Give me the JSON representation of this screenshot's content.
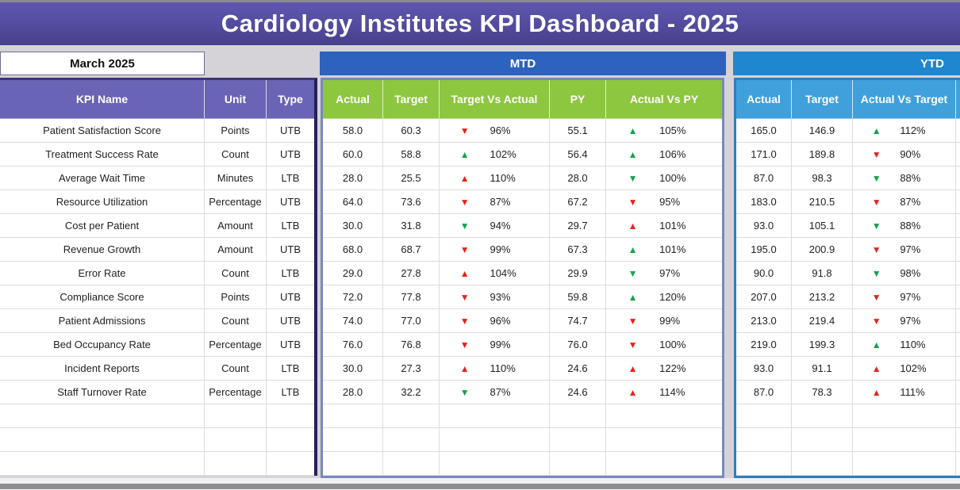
{
  "title": "Cardiology Institutes KPI Dashboard - 2025",
  "period": {
    "value": "March 2025"
  },
  "sections": {
    "kpi": {
      "headers": [
        "KPI Name",
        "Unit",
        "Type"
      ]
    },
    "mtd": {
      "label": "MTD",
      "headers": [
        "Actual",
        "Target",
        "Target Vs Actual",
        "PY",
        "Actual Vs PY"
      ]
    },
    "ytd": {
      "label": "YTD",
      "headers": [
        "Actual",
        "Target",
        "Actual Vs Target"
      ]
    }
  },
  "colors": {
    "title_purple": "#554DA1",
    "kpi_header_purple": "#6A64B6",
    "mtd_bar_blue": "#2D62BE",
    "ytd_bar_blue": "#1F86D0",
    "mtd_header_green": "#8DC63F",
    "ytd_header_blue": "#3FA0DC",
    "positive_green": "#17A14C",
    "negative_red": "#E0261C"
  },
  "empty_row_count": 3,
  "rows": [
    {
      "name": "Patient Satisfaction Score",
      "unit": "Points",
      "type": "UTB",
      "mtd": {
        "actual": "58.0",
        "target": "60.3",
        "target_vs_actual": {
          "dir": "down",
          "color": "red",
          "value": "96%"
        },
        "py": "55.1",
        "actual_vs_py": {
          "dir": "up",
          "color": "green",
          "value": "105%"
        }
      },
      "ytd": {
        "actual": "165.0",
        "target": "146.9",
        "actual_vs_target": {
          "dir": "up",
          "color": "green",
          "value": "112%"
        }
      }
    },
    {
      "name": "Treatment Success Rate",
      "unit": "Count",
      "type": "UTB",
      "mtd": {
        "actual": "60.0",
        "target": "58.8",
        "target_vs_actual": {
          "dir": "up",
          "color": "green",
          "value": "102%"
        },
        "py": "56.4",
        "actual_vs_py": {
          "dir": "up",
          "color": "green",
          "value": "106%"
        }
      },
      "ytd": {
        "actual": "171.0",
        "target": "189.8",
        "actual_vs_target": {
          "dir": "down",
          "color": "red",
          "value": "90%"
        }
      }
    },
    {
      "name": "Average Wait Time",
      "unit": "Minutes",
      "type": "LTB",
      "mtd": {
        "actual": "28.0",
        "target": "25.5",
        "target_vs_actual": {
          "dir": "up",
          "color": "red",
          "value": "110%"
        },
        "py": "28.0",
        "actual_vs_py": {
          "dir": "down",
          "color": "green",
          "value": "100%"
        }
      },
      "ytd": {
        "actual": "87.0",
        "target": "98.3",
        "actual_vs_target": {
          "dir": "down",
          "color": "green",
          "value": "88%"
        }
      }
    },
    {
      "name": "Resource Utilization",
      "unit": "Percentage",
      "type": "UTB",
      "mtd": {
        "actual": "64.0",
        "target": "73.6",
        "target_vs_actual": {
          "dir": "down",
          "color": "red",
          "value": "87%"
        },
        "py": "67.2",
        "actual_vs_py": {
          "dir": "down",
          "color": "red",
          "value": "95%"
        }
      },
      "ytd": {
        "actual": "183.0",
        "target": "210.5",
        "actual_vs_target": {
          "dir": "down",
          "color": "red",
          "value": "87%"
        }
      }
    },
    {
      "name": "Cost per Patient",
      "unit": "Amount",
      "type": "LTB",
      "mtd": {
        "actual": "30.0",
        "target": "31.8",
        "target_vs_actual": {
          "dir": "down",
          "color": "green",
          "value": "94%"
        },
        "py": "29.7",
        "actual_vs_py": {
          "dir": "up",
          "color": "red",
          "value": "101%"
        }
      },
      "ytd": {
        "actual": "93.0",
        "target": "105.1",
        "actual_vs_target": {
          "dir": "down",
          "color": "green",
          "value": "88%"
        }
      }
    },
    {
      "name": "Revenue Growth",
      "unit": "Amount",
      "type": "UTB",
      "mtd": {
        "actual": "68.0",
        "target": "68.7",
        "target_vs_actual": {
          "dir": "down",
          "color": "red",
          "value": "99%"
        },
        "py": "67.3",
        "actual_vs_py": {
          "dir": "up",
          "color": "green",
          "value": "101%"
        }
      },
      "ytd": {
        "actual": "195.0",
        "target": "200.9",
        "actual_vs_target": {
          "dir": "down",
          "color": "red",
          "value": "97%"
        }
      }
    },
    {
      "name": "Error Rate",
      "unit": "Count",
      "type": "LTB",
      "mtd": {
        "actual": "29.0",
        "target": "27.8",
        "target_vs_actual": {
          "dir": "up",
          "color": "red",
          "value": "104%"
        },
        "py": "29.9",
        "actual_vs_py": {
          "dir": "down",
          "color": "green",
          "value": "97%"
        }
      },
      "ytd": {
        "actual": "90.0",
        "target": "91.8",
        "actual_vs_target": {
          "dir": "down",
          "color": "green",
          "value": "98%"
        }
      }
    },
    {
      "name": "Compliance Score",
      "unit": "Points",
      "type": "UTB",
      "mtd": {
        "actual": "72.0",
        "target": "77.8",
        "target_vs_actual": {
          "dir": "down",
          "color": "red",
          "value": "93%"
        },
        "py": "59.8",
        "actual_vs_py": {
          "dir": "up",
          "color": "green",
          "value": "120%"
        }
      },
      "ytd": {
        "actual": "207.0",
        "target": "213.2",
        "actual_vs_target": {
          "dir": "down",
          "color": "red",
          "value": "97%"
        }
      }
    },
    {
      "name": "Patient Admissions",
      "unit": "Count",
      "type": "UTB",
      "mtd": {
        "actual": "74.0",
        "target": "77.0",
        "target_vs_actual": {
          "dir": "down",
          "color": "red",
          "value": "96%"
        },
        "py": "74.7",
        "actual_vs_py": {
          "dir": "down",
          "color": "red",
          "value": "99%"
        }
      },
      "ytd": {
        "actual": "213.0",
        "target": "219.4",
        "actual_vs_target": {
          "dir": "down",
          "color": "red",
          "value": "97%"
        }
      }
    },
    {
      "name": "Bed Occupancy Rate",
      "unit": "Percentage",
      "type": "UTB",
      "mtd": {
        "actual": "76.0",
        "target": "76.8",
        "target_vs_actual": {
          "dir": "down",
          "color": "red",
          "value": "99%"
        },
        "py": "76.0",
        "actual_vs_py": {
          "dir": "down",
          "color": "red",
          "value": "100%"
        }
      },
      "ytd": {
        "actual": "219.0",
        "target": "199.3",
        "actual_vs_target": {
          "dir": "up",
          "color": "green",
          "value": "110%"
        }
      }
    },
    {
      "name": "Incident Reports",
      "unit": "Count",
      "type": "LTB",
      "mtd": {
        "actual": "30.0",
        "target": "27.3",
        "target_vs_actual": {
          "dir": "up",
          "color": "red",
          "value": "110%"
        },
        "py": "24.6",
        "actual_vs_py": {
          "dir": "up",
          "color": "red",
          "value": "122%"
        }
      },
      "ytd": {
        "actual": "93.0",
        "target": "91.1",
        "actual_vs_target": {
          "dir": "up",
          "color": "red",
          "value": "102%"
        }
      }
    },
    {
      "name": "Staff Turnover Rate",
      "unit": "Percentage",
      "type": "LTB",
      "mtd": {
        "actual": "28.0",
        "target": "32.2",
        "target_vs_actual": {
          "dir": "down",
          "color": "green",
          "value": "87%"
        },
        "py": "24.6",
        "actual_vs_py": {
          "dir": "up",
          "color": "red",
          "value": "114%"
        }
      },
      "ytd": {
        "actual": "87.0",
        "target": "78.3",
        "actual_vs_target": {
          "dir": "up",
          "color": "red",
          "value": "111%"
        }
      }
    }
  ]
}
